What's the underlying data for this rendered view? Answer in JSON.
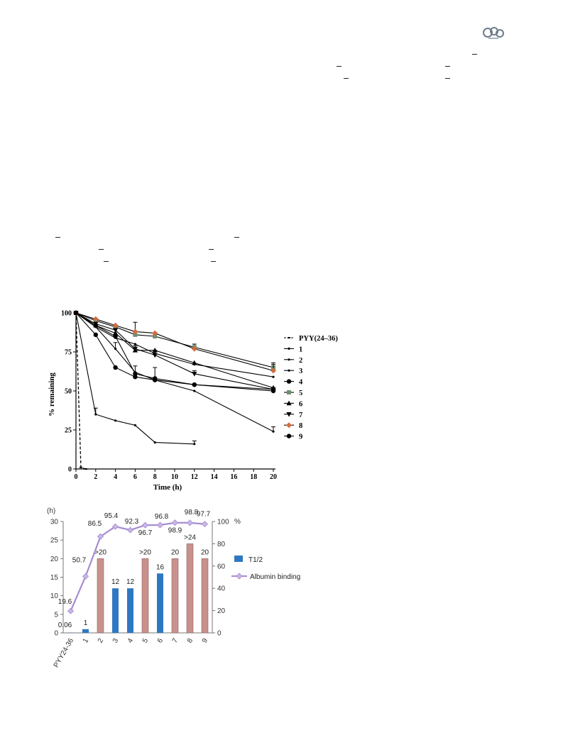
{
  "chart_data": [
    {
      "type": "line",
      "xlabel": "Time (h)",
      "ylabel": "% remaining",
      "xlim": [
        0,
        20
      ],
      "ylim": [
        0,
        100
      ],
      "x_ticks": [
        "0",
        "2",
        "4",
        "6",
        "8",
        "10",
        "12",
        "14",
        "16",
        "18",
        "20"
      ],
      "y_ticks": [
        "0",
        "25",
        "50",
        "75",
        "100"
      ],
      "legend_position": "right",
      "series": [
        {
          "name": "PYY(24–36)",
          "marker": "dash",
          "dashed": true,
          "points": [
            [
              0,
              100
            ],
            [
              0.5,
              1
            ],
            [
              1,
              0
            ]
          ]
        },
        {
          "name": "1",
          "marker": "dot",
          "points": [
            [
              0,
              100
            ],
            [
              2,
              35
            ],
            [
              4,
              31
            ],
            [
              6,
              28
            ],
            [
              8,
              17
            ],
            [
              12,
              16
            ]
          ],
          "errors": [
            [
              2,
              4
            ],
            [
              12,
              2
            ]
          ]
        },
        {
          "name": "2",
          "marker": "dot",
          "points": [
            [
              0,
              100
            ],
            [
              2,
              91
            ],
            [
              4,
              84
            ],
            [
              6,
              80
            ],
            [
              8,
              74
            ],
            [
              12,
              67
            ],
            [
              20,
              59
            ]
          ]
        },
        {
          "name": "3",
          "marker": "dot",
          "points": [
            [
              0,
              100
            ],
            [
              2,
              91
            ],
            [
              4,
              77
            ],
            [
              6,
              62
            ],
            [
              8,
              57
            ],
            [
              12,
              50
            ],
            [
              20,
              24
            ]
          ],
          "errors": [
            [
              4,
              4
            ],
            [
              20,
              3
            ]
          ]
        },
        {
          "name": "4",
          "marker": "circle",
          "points": [
            [
              0,
              100
            ],
            [
              2,
              86
            ],
            [
              4,
              65
            ],
            [
              6,
              59
            ],
            [
              8,
              57
            ],
            [
              12,
              54
            ],
            [
              20,
              50
            ]
          ]
        },
        {
          "name": "5",
          "marker": "square",
          "color": "#6e8f72",
          "points": [
            [
              0,
              100
            ],
            [
              2,
              95
            ],
            [
              4,
              91
            ],
            [
              6,
              86
            ],
            [
              8,
              85
            ],
            [
              12,
              78
            ],
            [
              20,
              65
            ]
          ],
          "errors": [
            [
              12,
              2
            ],
            [
              20,
              2
            ]
          ]
        },
        {
          "name": "6",
          "marker": "triangle-up",
          "points": [
            [
              0,
              100
            ],
            [
              2,
              92
            ],
            [
              4,
              87
            ],
            [
              6,
              76
            ],
            [
              8,
              76
            ],
            [
              12,
              68
            ],
            [
              20,
              52
            ]
          ],
          "errors": [
            [
              6,
              3
            ]
          ]
        },
        {
          "name": "7",
          "marker": "triangle-down",
          "points": [
            [
              0,
              100
            ],
            [
              2,
              93
            ],
            [
              4,
              89
            ],
            [
              6,
              77
            ],
            [
              8,
              73
            ],
            [
              12,
              61
            ],
            [
              20,
              51
            ]
          ],
          "errors": [
            [
              8,
              3
            ],
            [
              12,
              2
            ]
          ]
        },
        {
          "name": "8",
          "marker": "diamond",
          "color": "#d46a3c",
          "points": [
            [
              0,
              100
            ],
            [
              2,
              96
            ],
            [
              4,
              92
            ],
            [
              6,
              88
            ],
            [
              8,
              87
            ],
            [
              12,
              77
            ],
            [
              20,
              63
            ]
          ],
          "errors": [
            [
              6,
              6
            ],
            [
              20,
              5
            ]
          ]
        },
        {
          "name": "9",
          "marker": "circle",
          "points": [
            [
              0,
              100
            ],
            [
              2,
              92
            ],
            [
              4,
              85
            ],
            [
              6,
              61
            ],
            [
              8,
              58
            ],
            [
              12,
              54
            ],
            [
              20,
              51
            ]
          ],
          "errors": [
            [
              6,
              5
            ],
            [
              8,
              7
            ]
          ]
        }
      ]
    },
    {
      "type": "bar",
      "y_unit_left": "(h)",
      "y_unit_right": "%",
      "ylim_left": [
        0,
        30
      ],
      "ylim_right": [
        0,
        100
      ],
      "y_ticks_left": [
        "0",
        "5",
        "10",
        "15",
        "20",
        "25",
        "30"
      ],
      "y_ticks_right": [
        "0",
        "20",
        "40",
        "60",
        "80",
        "100"
      ],
      "categories": [
        "PYY24-36",
        "1",
        "2",
        "3",
        "4",
        "5",
        "6",
        "7",
        "8",
        "9"
      ],
      "bars": {
        "name": "T1/2",
        "values": [
          0.06,
          1,
          20,
          12,
          12,
          20,
          16,
          20,
          24,
          20
        ],
        "labels": [
          "0.06",
          "1",
          ">20",
          "12",
          "12",
          ">20",
          "16",
          "20",
          ">24",
          "20"
        ],
        "colors": [
          "#2e78c2",
          "#2e78c2",
          "#c9908c",
          "#2e78c2",
          "#2e78c2",
          "#c9908c",
          "#2e78c2",
          "#c9908c",
          "#c9908c",
          "#c9908c"
        ]
      },
      "line": {
        "name": "Albumin binding",
        "values": [
          19.6,
          50.7,
          86.5,
          95.4,
          92.3,
          96.7,
          96.8,
          98.9,
          98.8,
          97.7
        ],
        "labels": [
          "19.6",
          "50.7",
          "86.5",
          "95.4",
          "92.3",
          "96.7",
          "96.8",
          "98.9",
          "98.8",
          "97.7"
        ],
        "color": "#a68bd4"
      },
      "legend_position": "right"
    }
  ]
}
